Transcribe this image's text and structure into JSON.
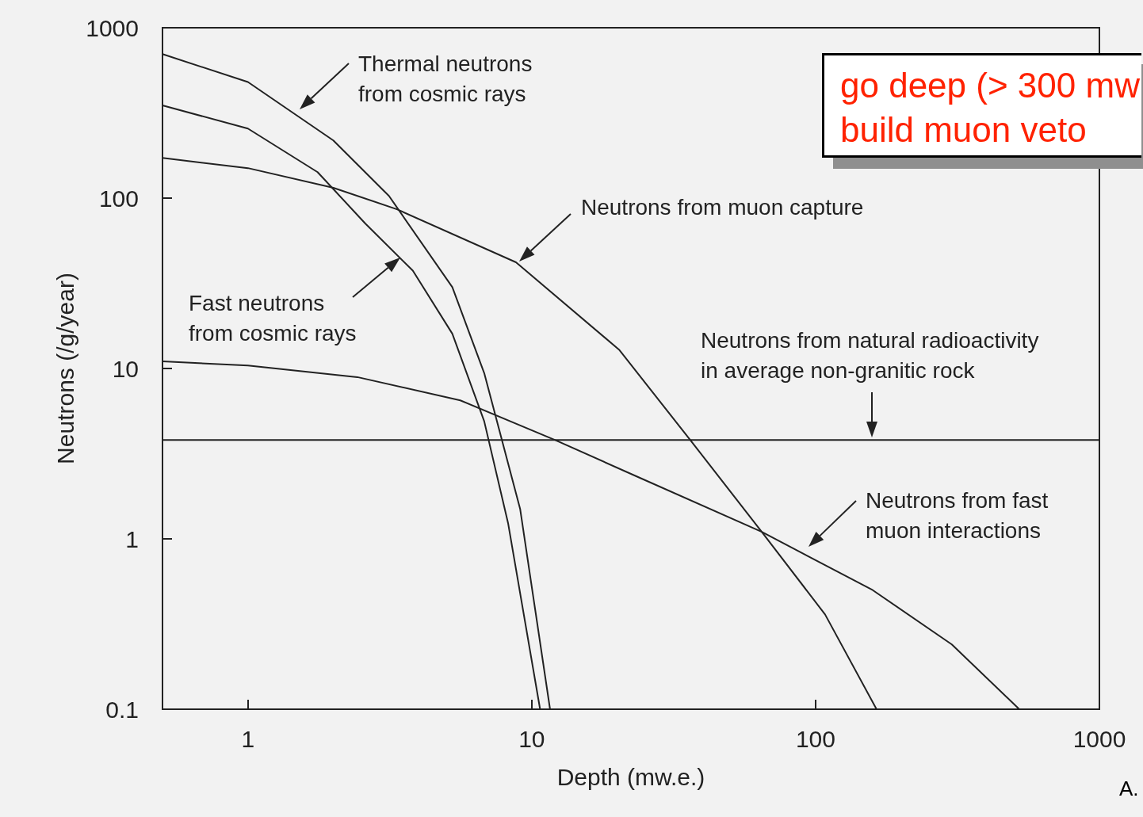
{
  "chart_data": {
    "type": "line",
    "xlabel": "Depth (mw.e.)",
    "ylabel": "Neutrons (/g/year)",
    "log": "xy",
    "grid": false,
    "marker": "none",
    "line_style": "solid",
    "xlim": [
      0.5,
      1000
    ],
    "xticks": [
      1,
      10,
      100,
      1000
    ],
    "ylim": [
      0.1,
      1000
    ],
    "yticks": [
      0.1,
      1,
      10,
      100,
      1000
    ],
    "series": [
      {
        "color": "#222222",
        "x": [
          0.5,
          1,
          2.0,
          3.14,
          5.25,
          6.8,
          9.1,
          11.6
        ],
        "values": [
          700,
          480,
          218,
          103,
          30,
          9.4,
          1.5,
          0.1
        ]
      },
      {
        "color": "#222222",
        "x": [
          0.5,
          1,
          1.76,
          2.59,
          3.81,
          5.25,
          6.8,
          8.25,
          10.7
        ],
        "values": [
          350,
          256,
          142,
          71,
          37.5,
          16,
          4.9,
          1.24,
          0.1
        ]
      },
      {
        "color": "#222222",
        "x": [
          0.5,
          1,
          2.0,
          3.35,
          8.8,
          20.3,
          36.2,
          64.6,
          108,
          164
        ],
        "values": [
          172,
          150,
          115,
          86,
          42,
          12.9,
          3.8,
          1.1,
          0.36,
          0.1
        ]
      },
      {
        "color": "#222222",
        "x": [
          0.5,
          1,
          2.43,
          5.6,
          12.1,
          23.1,
          64.6,
          159,
          302,
          522
        ],
        "values": [
          11,
          10.4,
          8.9,
          6.5,
          3.8,
          2.35,
          1.1,
          0.5,
          0.24,
          0.1
        ]
      },
      {
        "color": "#222222",
        "x": [
          0.5,
          1000
        ],
        "values": [
          3.8,
          3.8
        ]
      }
    ],
    "annotations": [
      "Thermal neutrons\nfrom cosmic rays",
      "Fast neutrons\nfrom cosmic rays",
      "Neutrons from muon capture",
      "Neutrons from natural radioactivity\nin average non-granitic rock",
      "Neutrons from fast\nmuon interactions",
      "go deep (> 300 mw\nbuild muon veto",
      "A."
    ]
  }
}
